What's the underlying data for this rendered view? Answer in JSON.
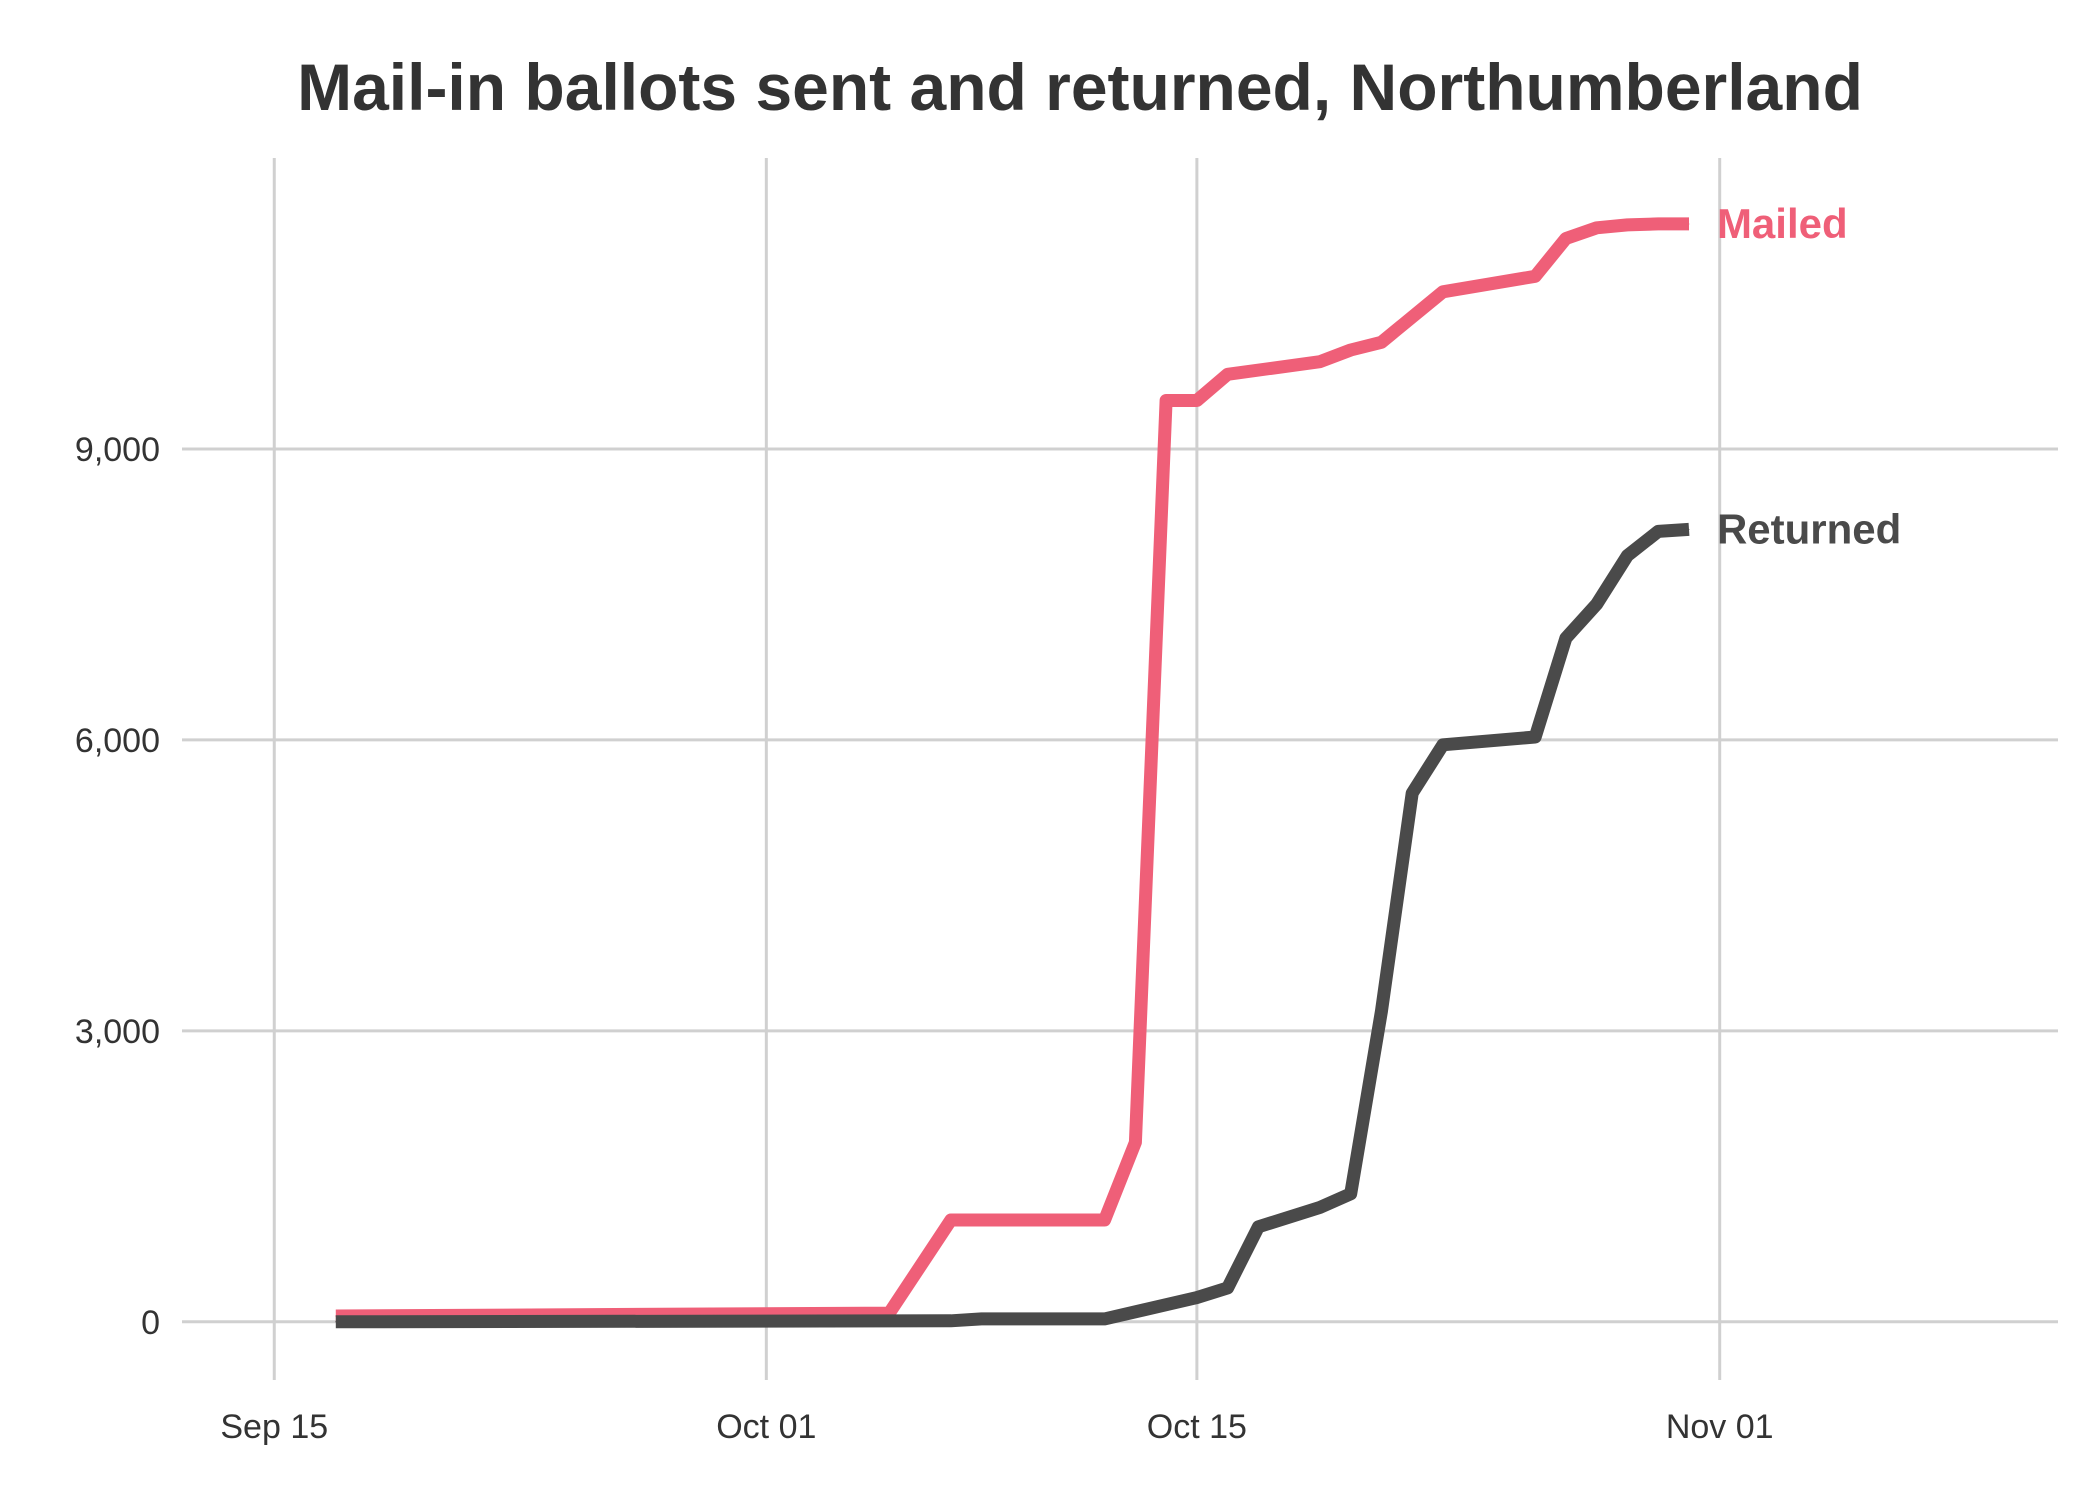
{
  "chart_data": {
    "type": "line",
    "title": "Mail-in ballots sent and returned, Northumberland",
    "xlabel": "",
    "ylabel": "",
    "x_ticks": [
      {
        "date": "2020-09-15",
        "label": "Sep 15"
      },
      {
        "date": "2020-10-01",
        "label": "Oct 01"
      },
      {
        "date": "2020-10-15",
        "label": "Oct 15"
      },
      {
        "date": "2020-11-01",
        "label": "Nov 01"
      }
    ],
    "y_ticks": [
      {
        "value": 0,
        "label": "0"
      },
      {
        "value": 3000,
        "label": "3,000"
      },
      {
        "value": 6000,
        "label": "6,000"
      },
      {
        "value": 9000,
        "label": "9,000"
      }
    ],
    "xlim": [
      "2020-09-12",
      "2020-11-12"
    ],
    "ylim": [
      -600,
      12000
    ],
    "grid": true,
    "legend": "direct labels at line ends",
    "series": [
      {
        "name": "Mailed",
        "color": "#ef5f78",
        "points": [
          {
            "x": "2020-09-17",
            "y": 60
          },
          {
            "x": "2020-10-05",
            "y": 90
          },
          {
            "x": "2020-10-07",
            "y": 1050
          },
          {
            "x": "2020-10-12",
            "y": 1050
          },
          {
            "x": "2020-10-13",
            "y": 1850
          },
          {
            "x": "2020-10-14",
            "y": 9500
          },
          {
            "x": "2020-10-15",
            "y": 9500
          },
          {
            "x": "2020-10-16",
            "y": 9770
          },
          {
            "x": "2020-10-19",
            "y": 9900
          },
          {
            "x": "2020-10-20",
            "y": 10020
          },
          {
            "x": "2020-10-21",
            "y": 10100
          },
          {
            "x": "2020-10-23",
            "y": 10620
          },
          {
            "x": "2020-10-26",
            "y": 10780
          },
          {
            "x": "2020-10-27",
            "y": 11170
          },
          {
            "x": "2020-10-28",
            "y": 11280
          },
          {
            "x": "2020-10-29",
            "y": 11310
          },
          {
            "x": "2020-10-30",
            "y": 11320
          },
          {
            "x": "2020-10-31",
            "y": 11320
          }
        ]
      },
      {
        "name": "Returned",
        "color": "#4a4a4a",
        "points": [
          {
            "x": "2020-09-17",
            "y": 0
          },
          {
            "x": "2020-10-07",
            "y": 10
          },
          {
            "x": "2020-10-08",
            "y": 30
          },
          {
            "x": "2020-10-12",
            "y": 30
          },
          {
            "x": "2020-10-15",
            "y": 250
          },
          {
            "x": "2020-10-16",
            "y": 350
          },
          {
            "x": "2020-10-17",
            "y": 980
          },
          {
            "x": "2020-10-19",
            "y": 1180
          },
          {
            "x": "2020-10-20",
            "y": 1320
          },
          {
            "x": "2020-10-21",
            "y": 3200
          },
          {
            "x": "2020-10-22",
            "y": 5450
          },
          {
            "x": "2020-10-23",
            "y": 5950
          },
          {
            "x": "2020-10-26",
            "y": 6030
          },
          {
            "x": "2020-10-27",
            "y": 7050
          },
          {
            "x": "2020-10-28",
            "y": 7400
          },
          {
            "x": "2020-10-29",
            "y": 7900
          },
          {
            "x": "2020-10-30",
            "y": 8150
          },
          {
            "x": "2020-10-31",
            "y": 8170
          }
        ]
      }
    ]
  }
}
